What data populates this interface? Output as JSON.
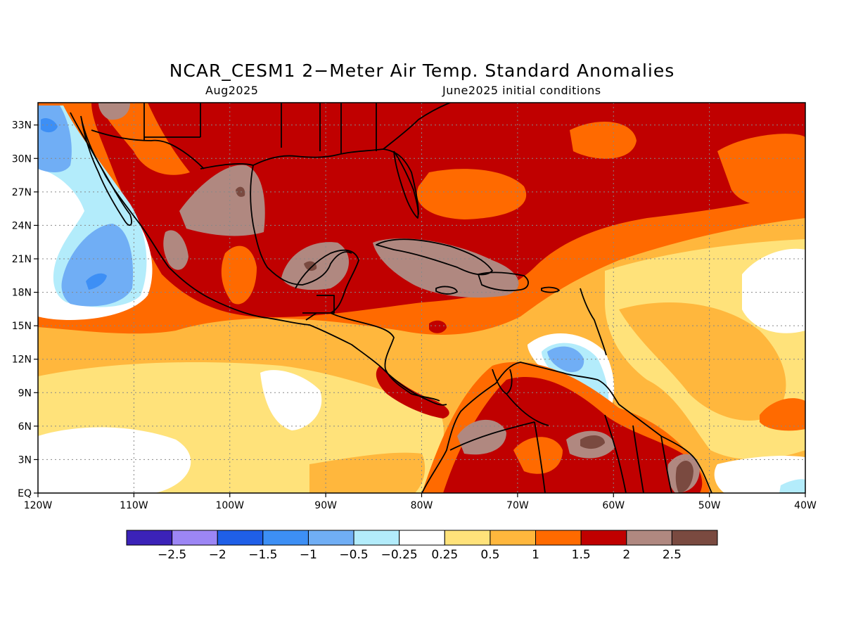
{
  "title": "NCAR_CESM1 2−Meter Air Temp. Standard Anomalies",
  "subtitle_left": "Aug2025",
  "subtitle_right": "June2025 initial conditions",
  "map": {
    "lon_range": [
      -120,
      -40
    ],
    "lat_range": [
      0,
      35
    ],
    "lat_ticks": [
      {
        "lat": 33,
        "label": "33N"
      },
      {
        "lat": 30,
        "label": "30N"
      },
      {
        "lat": 27,
        "label": "27N"
      },
      {
        "lat": 24,
        "label": "24N"
      },
      {
        "lat": 21,
        "label": "21N"
      },
      {
        "lat": 18,
        "label": "18N"
      },
      {
        "lat": 15,
        "label": "15N"
      },
      {
        "lat": 12,
        "label": "12N"
      },
      {
        "lat": 9,
        "label": "9N"
      },
      {
        "lat": 6,
        "label": "6N"
      },
      {
        "lat": 3,
        "label": "3N"
      },
      {
        "lat": 0,
        "label": "EQ"
      }
    ],
    "lon_ticks": [
      {
        "lon": -120,
        "label": "120W"
      },
      {
        "lon": -110,
        "label": "110W"
      },
      {
        "lon": -100,
        "label": "100W"
      },
      {
        "lon": -90,
        "label": "90W"
      },
      {
        "lon": -80,
        "label": "80W"
      },
      {
        "lon": -70,
        "label": "70W"
      },
      {
        "lon": -60,
        "label": "60W"
      },
      {
        "lon": -50,
        "label": "50W"
      },
      {
        "lon": -40,
        "label": "40W"
      }
    ],
    "grid": "dotted"
  },
  "colorbar": {
    "colors": [
      "#3b22b8",
      "#9c86f5",
      "#1f5fe8",
      "#3d8ff5",
      "#70aef5",
      "#b3ecfb",
      "#ffffff",
      "#ffe27a",
      "#ffb73d",
      "#ff6a00",
      "#c00000",
      "#b08880",
      "#7a4a40"
    ],
    "labels": [
      "−2.5",
      "−2",
      "−1.5",
      "−1",
      "−0.5",
      "−0.25",
      "0.25",
      "0.5",
      "1",
      "1.5",
      "2",
      "2.5"
    ]
  }
}
